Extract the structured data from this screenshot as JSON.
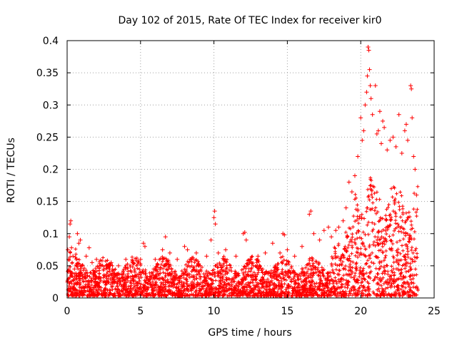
{
  "chart_data": {
    "type": "scatter",
    "title": "Day 102 of 2015, Rate Of TEC Index for receiver kir0",
    "xlabel": "GPS time / hours",
    "ylabel": "ROTI / TECUs",
    "xlim": [
      0,
      25
    ],
    "ylim": [
      0,
      0.4
    ],
    "grid": true,
    "marker": "+",
    "series_color": "#ff0000",
    "x_ticks": [
      0,
      5,
      10,
      15,
      20,
      25
    ],
    "x_tick_labels": [
      "0",
      "5",
      "10",
      "15",
      "20",
      "25"
    ],
    "y_ticks": [
      0,
      0.05,
      0.1,
      0.15,
      0.2,
      0.25,
      0.3,
      0.35,
      0.4
    ],
    "y_tick_labels": [
      "0",
      "0.05",
      "0.1",
      "0.15",
      "0.2",
      "0.25",
      "0.3",
      "0.35",
      "0.4"
    ],
    "series": [
      {
        "name": "ROTI",
        "points": [
          [
            0.05,
            0.075
          ],
          [
            0.1,
            0.06
          ],
          [
            0.15,
            0.095
          ],
          [
            0.2,
            0.115
          ],
          [
            0.25,
            0.12
          ],
          [
            0.3,
            0.078
          ],
          [
            0.4,
            0.065
          ],
          [
            0.5,
            0.045
          ],
          [
            0.7,
            0.1
          ],
          [
            0.8,
            0.085
          ],
          [
            0.9,
            0.09
          ],
          [
            1.0,
            0.05
          ],
          [
            1.3,
            0.065
          ],
          [
            1.5,
            0.078
          ],
          [
            1.7,
            0.055
          ],
          [
            2.0,
            0.06
          ],
          [
            2.5,
            0.045
          ],
          [
            3.0,
            0.055
          ],
          [
            3.5,
            0.05
          ],
          [
            4.0,
            0.06
          ],
          [
            4.5,
            0.055
          ],
          [
            5.0,
            0.06
          ],
          [
            5.2,
            0.085
          ],
          [
            5.3,
            0.08
          ],
          [
            6.0,
            0.06
          ],
          [
            6.5,
            0.075
          ],
          [
            6.7,
            0.095
          ],
          [
            7.0,
            0.07
          ],
          [
            7.5,
            0.06
          ],
          [
            8.0,
            0.08
          ],
          [
            8.2,
            0.075
          ],
          [
            8.8,
            0.07
          ],
          [
            9.5,
            0.065
          ],
          [
            9.8,
            0.09
          ],
          [
            10.0,
            0.125
          ],
          [
            10.05,
            0.135
          ],
          [
            10.1,
            0.115
          ],
          [
            10.3,
            0.07
          ],
          [
            10.8,
            0.075
          ],
          [
            11.5,
            0.065
          ],
          [
            12.0,
            0.1
          ],
          [
            12.1,
            0.102
          ],
          [
            12.2,
            0.09
          ],
          [
            12.5,
            0.06
          ],
          [
            13.0,
            0.065
          ],
          [
            13.5,
            0.07
          ],
          [
            14.0,
            0.085
          ],
          [
            14.5,
            0.07
          ],
          [
            14.7,
            0.1
          ],
          [
            14.8,
            0.098
          ],
          [
            15.0,
            0.075
          ],
          [
            15.5,
            0.065
          ],
          [
            16.0,
            0.08
          ],
          [
            16.5,
            0.13
          ],
          [
            16.6,
            0.135
          ],
          [
            16.8,
            0.1
          ],
          [
            17.2,
            0.09
          ],
          [
            17.5,
            0.105
          ],
          [
            17.8,
            0.11
          ],
          [
            18.0,
            0.095
          ],
          [
            18.3,
            0.105
          ],
          [
            18.5,
            0.11
          ],
          [
            18.8,
            0.12
          ],
          [
            19.0,
            0.14
          ],
          [
            19.2,
            0.18
          ],
          [
            19.4,
            0.165
          ],
          [
            19.6,
            0.19
          ],
          [
            19.8,
            0.22
          ],
          [
            20.0,
            0.28
          ],
          [
            20.1,
            0.245
          ],
          [
            20.2,
            0.26
          ],
          [
            20.3,
            0.3
          ],
          [
            20.4,
            0.32
          ],
          [
            20.45,
            0.345
          ],
          [
            20.5,
            0.39
          ],
          [
            20.55,
            0.385
          ],
          [
            20.6,
            0.355
          ],
          [
            20.65,
            0.33
          ],
          [
            20.7,
            0.31
          ],
          [
            20.8,
            0.285
          ],
          [
            21.0,
            0.33
          ],
          [
            21.1,
            0.255
          ],
          [
            21.2,
            0.26
          ],
          [
            21.3,
            0.29
          ],
          [
            21.4,
            0.24
          ],
          [
            21.5,
            0.275
          ],
          [
            21.6,
            0.265
          ],
          [
            21.8,
            0.23
          ],
          [
            22.0,
            0.245
          ],
          [
            22.2,
            0.25
          ],
          [
            22.4,
            0.235
          ],
          [
            22.6,
            0.285
          ],
          [
            22.8,
            0.225
          ],
          [
            23.0,
            0.26
          ],
          [
            23.1,
            0.27
          ],
          [
            23.2,
            0.245
          ],
          [
            23.4,
            0.33
          ],
          [
            23.45,
            0.325
          ],
          [
            23.5,
            0.28
          ],
          [
            23.6,
            0.22
          ],
          [
            23.7,
            0.2
          ],
          [
            23.8,
            0.16
          ]
        ]
      }
    ]
  }
}
